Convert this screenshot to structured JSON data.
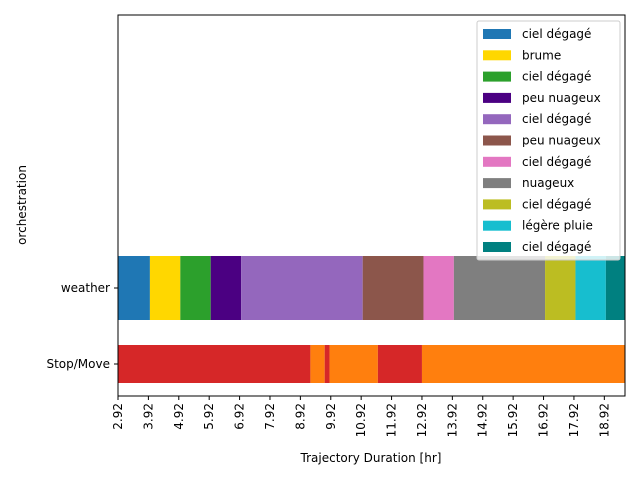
{
  "chart_data": {
    "type": "bar",
    "orientation": "horizontal",
    "xlabel": "Trajectory Duration [hr]",
    "ylabel": "orchestration",
    "xlim": [
      2.92,
      19.6
    ],
    "x_ticks": [
      "2.92",
      "3.92",
      "4.92",
      "5.92",
      "6.92",
      "7.92",
      "8.92",
      "9.92",
      "10.92",
      "11.92",
      "12.92",
      "13.92",
      "14.92",
      "15.92",
      "16.92",
      "17.92",
      "18.92"
    ],
    "y_categories": [
      "Stop/Move",
      "weather"
    ],
    "legend_position": "upper right",
    "weather_segments": [
      {
        "label": "ciel dégagé",
        "start": 2.92,
        "end": 3.97,
        "color": "#1f77b4"
      },
      {
        "label": "brume",
        "start": 3.97,
        "end": 4.97,
        "color": "#ffd700"
      },
      {
        "label": "ciel dégagé",
        "start": 4.97,
        "end": 5.97,
        "color": "#2ca02c"
      },
      {
        "label": "peu nuageux",
        "start": 5.97,
        "end": 6.97,
        "color": "#4b0082"
      },
      {
        "label": "ciel dégagé",
        "start": 6.97,
        "end": 10.97,
        "color": "#9467bd"
      },
      {
        "label": "peu nuageux",
        "start": 10.97,
        "end": 12.97,
        "color": "#8c564b"
      },
      {
        "label": "ciel dégagé",
        "start": 12.97,
        "end": 13.97,
        "color": "#e377c2"
      },
      {
        "label": "nuageux",
        "start": 13.97,
        "end": 16.97,
        "color": "#7f7f7f"
      },
      {
        "label": "ciel dégagé",
        "start": 16.97,
        "end": 17.97,
        "color": "#bcbd22"
      },
      {
        "label": "légère pluie",
        "start": 17.97,
        "end": 18.97,
        "color": "#17becf"
      },
      {
        "label": "ciel dégagé",
        "start": 18.97,
        "end": 19.6,
        "color": "#008080"
      }
    ],
    "stopmove_segments": [
      {
        "start": 2.92,
        "end": 9.25,
        "color": "#d62728"
      },
      {
        "start": 9.25,
        "end": 9.72,
        "color": "#ff7f0e"
      },
      {
        "start": 9.72,
        "end": 9.88,
        "color": "#d62728"
      },
      {
        "start": 9.88,
        "end": 11.47,
        "color": "#ff7f0e"
      },
      {
        "start": 11.47,
        "end": 12.92,
        "color": "#d62728"
      },
      {
        "start": 12.92,
        "end": 19.6,
        "color": "#ff7f0e"
      }
    ]
  }
}
